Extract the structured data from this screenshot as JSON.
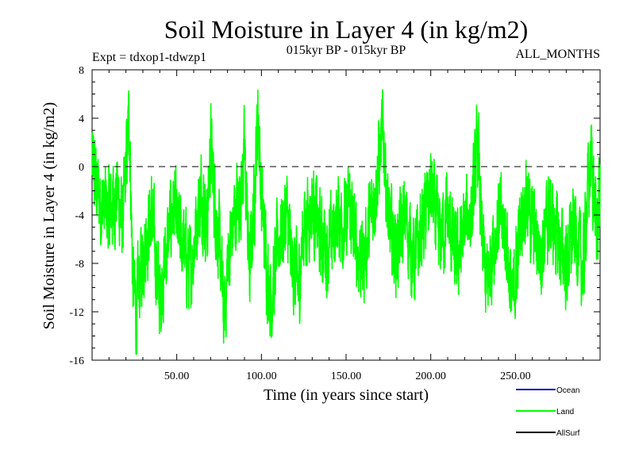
{
  "chart_data": {
    "type": "line",
    "title": "Soil Moisture in Layer 4 (in kg/m2)",
    "subtitle": "015kyr BP - 015kyr BP",
    "experiment": "Expt = tdxop1-tdwzp1",
    "months": "ALL_MONTHS",
    "xlabel": "Time (in years since start)",
    "ylabel": "Soil Moisture in Layer 4 (in kg/m2)",
    "xlim": [
      0,
      300
    ],
    "ylim": [
      -16,
      8
    ],
    "x_ticks": [
      {
        "value": 50,
        "label": "50.00"
      },
      {
        "value": 100,
        "label": "100.00"
      },
      {
        "value": 150,
        "label": "150.00"
      },
      {
        "value": 200,
        "label": "200.00"
      },
      {
        "value": 250,
        "label": "250.00"
      }
    ],
    "y_ticks": [
      {
        "value": 8,
        "label": "8"
      },
      {
        "value": 4,
        "label": "4"
      },
      {
        "value": 0,
        "label": "0"
      },
      {
        "value": -4,
        "label": "-4"
      },
      {
        "value": -8,
        "label": "-8"
      },
      {
        "value": -12,
        "label": "-12"
      },
      {
        "value": -16,
        "label": "-16"
      }
    ],
    "zero_line": 0,
    "series": [
      {
        "name": "Ocean",
        "color": "#0000cc",
        "values": []
      },
      {
        "name": "Land",
        "color": "#00ff00",
        "x": [
          0,
          5,
          10,
          15,
          18,
          21,
          22,
          24,
          26,
          30,
          35,
          38,
          40,
          45,
          48,
          50,
          55,
          58,
          62,
          65,
          68,
          70,
          72,
          76,
          78,
          80,
          84,
          88,
          90,
          93,
          96,
          98,
          100,
          104,
          106,
          110,
          115,
          118,
          122,
          125,
          130,
          135,
          140,
          145,
          150,
          152,
          155,
          160,
          165,
          170,
          172,
          175,
          180,
          185,
          190,
          195,
          200,
          205,
          210,
          215,
          220,
          225,
          228,
          230,
          233,
          236,
          240,
          245,
          248,
          252,
          256,
          260,
          265,
          270,
          275,
          280,
          285,
          290,
          292,
          295,
          298,
          300
        ],
        "values": [
          0,
          -3,
          -4,
          -2,
          -5,
          2,
          4,
          -9,
          -12,
          -7,
          -4,
          -8,
          -11,
          -6,
          -3,
          -5,
          -7,
          -9,
          -4,
          -2,
          -5,
          2,
          -2,
          -8,
          -13,
          -8,
          -4,
          -2,
          1,
          -9,
          -2,
          5,
          -3,
          -9,
          -11,
          -6,
          -4,
          -8,
          -10,
          -5,
          -3,
          -6,
          -7,
          -4,
          -5,
          -3,
          -6,
          -8,
          -4,
          1,
          3,
          -5,
          -7,
          -4,
          -8,
          -5,
          -2,
          -6,
          -4,
          -8,
          -5,
          -3,
          2,
          -6,
          -10,
          -7,
          -4,
          -6,
          -12,
          -6,
          -2,
          -5,
          -7,
          -4,
          -6,
          -8,
          -5,
          -9,
          -3,
          1,
          -6,
          -2
        ]
      },
      {
        "name": "AllSurf",
        "color": "#000000",
        "values": []
      }
    ]
  }
}
